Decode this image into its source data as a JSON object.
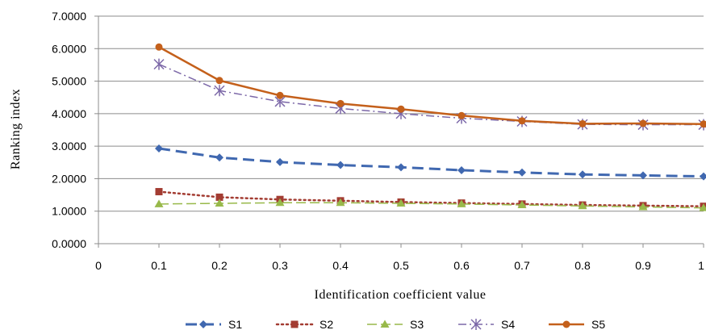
{
  "chart_data": {
    "type": "line",
    "xlabel": "Identification coefficient value",
    "ylabel": "Ranking index",
    "xlim": [
      0,
      1
    ],
    "ylim": [
      0,
      7
    ],
    "x_ticks": [
      "0",
      "0.1",
      "0.2",
      "0.3",
      "0.4",
      "0.5",
      "0.6",
      "0.7",
      "0.8",
      "0.9",
      "1"
    ],
    "y_ticks": [
      "0.0000",
      "1.0000",
      "2.0000",
      "3.0000",
      "4.0000",
      "5.0000",
      "6.0000",
      "7.0000"
    ],
    "x": [
      0.1,
      0.2,
      0.3,
      0.4,
      0.5,
      0.6,
      0.7,
      0.8,
      0.9,
      1.0
    ],
    "grid": "horizontal",
    "legend_position": "bottom",
    "series": [
      {
        "name": "S1",
        "color": "#4068b0",
        "dash": "long-dash",
        "marker": "diamond",
        "values": [
          2.93,
          2.65,
          2.51,
          2.42,
          2.35,
          2.26,
          2.19,
          2.13,
          2.1,
          2.07
        ]
      },
      {
        "name": "S2",
        "color": "#a33c32",
        "dash": "dotted",
        "marker": "square",
        "values": [
          1.6,
          1.43,
          1.36,
          1.32,
          1.28,
          1.25,
          1.22,
          1.19,
          1.17,
          1.15
        ]
      },
      {
        "name": "S3",
        "color": "#98b94a",
        "dash": "dash",
        "marker": "triangle",
        "values": [
          1.22,
          1.24,
          1.26,
          1.26,
          1.24,
          1.22,
          1.19,
          1.16,
          1.13,
          1.1
        ]
      },
      {
        "name": "S4",
        "color": "#7c68a8",
        "dash": "dash-dot",
        "marker": "asterisk",
        "values": [
          5.52,
          4.71,
          4.37,
          4.16,
          4.0,
          3.86,
          3.76,
          3.67,
          3.66,
          3.66
        ]
      },
      {
        "name": "S5",
        "color": "#c4601b",
        "dash": "solid",
        "marker": "circle",
        "values": [
          6.05,
          5.02,
          4.56,
          4.31,
          4.14,
          3.94,
          3.78,
          3.69,
          3.7,
          3.68
        ]
      }
    ]
  }
}
